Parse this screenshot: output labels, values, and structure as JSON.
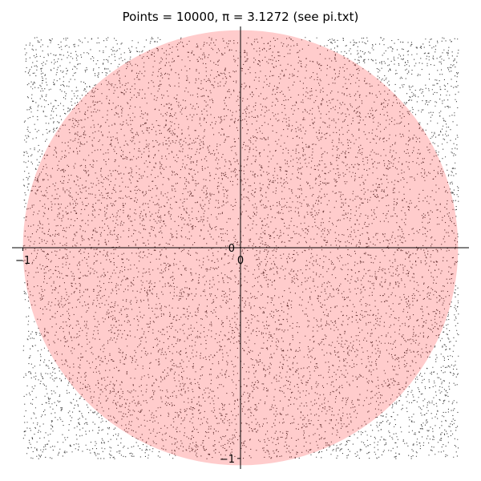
{
  "chart_data": {
    "type": "scatter",
    "title": "Points = 10000, π = 3.1272 (see pi.txt)",
    "n_points": 10000,
    "pi_estimate": 3.1272,
    "xlim": [
      -1.05,
      1.05
    ],
    "ylim": [
      -1.05,
      1.05
    ],
    "x_ticks": [
      -1,
      0
    ],
    "y_ticks": [
      -1,
      0
    ],
    "x_tick_labels": [
      "−1",
      "0"
    ],
    "y_tick_labels": [
      "−1",
      "0"
    ],
    "xlabel": "",
    "ylabel": "",
    "grid": false,
    "legend": false,
    "sample_region": {
      "x": [
        -1,
        1
      ],
      "y": [
        -1,
        1
      ]
    },
    "circle": {
      "center": [
        0,
        0
      ],
      "radius": 1,
      "fill_color": "#ff0000",
      "fill_opacity": 0.2
    },
    "point_color": "#000000"
  }
}
